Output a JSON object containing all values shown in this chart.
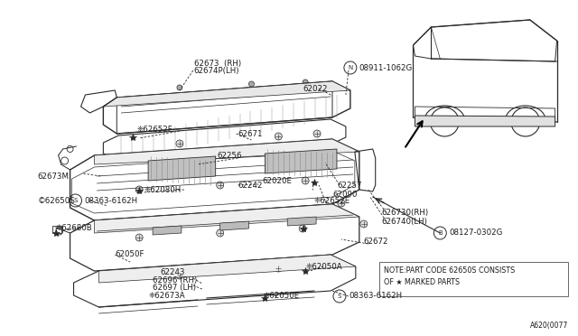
{
  "bg_color": "#ffffff",
  "line_color": "#2a2a2a",
  "text_color": "#1a1a1a",
  "fig_width": 6.4,
  "fig_height": 3.72,
  "note_line1": "NOTE:PART CODE 62650S CONSISTS",
  "note_line2": "OF ★ MARKED PARTS",
  "ref_code": "A620(0077"
}
